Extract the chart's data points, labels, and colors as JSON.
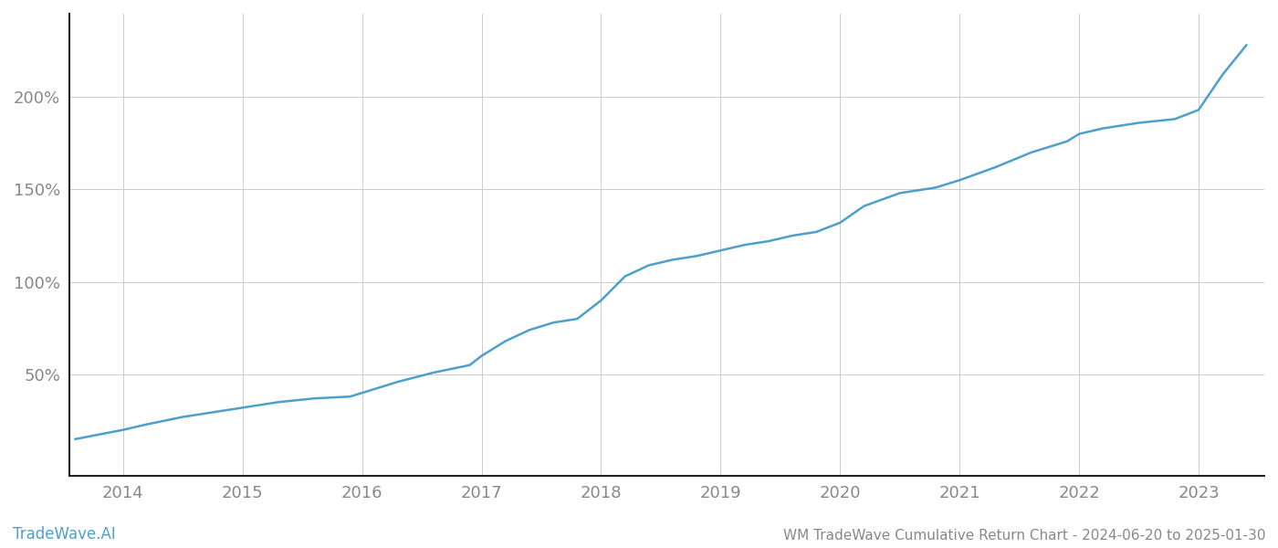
{
  "title": "WM TradeWave Cumulative Return Chart - 2024-06-20 to 2025-01-30",
  "watermark": "TradeWave.AI",
  "line_color": "#4d9fcc",
  "background_color": "#ffffff",
  "grid_color": "#cccccc",
  "years": [
    2014,
    2015,
    2016,
    2017,
    2018,
    2019,
    2020,
    2021,
    2022,
    2023
  ],
  "x_values": [
    2013.6,
    2014.0,
    2014.2,
    2014.5,
    2014.8,
    2015.0,
    2015.3,
    2015.6,
    2015.9,
    2016.0,
    2016.3,
    2016.6,
    2016.9,
    2017.0,
    2017.2,
    2017.4,
    2017.6,
    2017.8,
    2018.0,
    2018.2,
    2018.4,
    2018.6,
    2018.8,
    2019.0,
    2019.2,
    2019.4,
    2019.6,
    2019.8,
    2020.0,
    2020.2,
    2020.5,
    2020.8,
    2021.0,
    2021.3,
    2021.6,
    2021.9,
    2022.0,
    2022.2,
    2022.5,
    2022.8,
    2023.0,
    2023.2,
    2023.4
  ],
  "y_values": [
    15,
    20,
    23,
    27,
    30,
    32,
    35,
    37,
    38,
    40,
    46,
    51,
    55,
    60,
    68,
    74,
    78,
    80,
    90,
    103,
    109,
    112,
    114,
    117,
    120,
    122,
    125,
    127,
    132,
    141,
    148,
    151,
    155,
    162,
    170,
    176,
    180,
    183,
    186,
    188,
    193,
    212,
    228
  ],
  "ylim": [
    -5,
    245
  ],
  "yticks": [
    50,
    100,
    150,
    200
  ],
  "xlim": [
    2013.55,
    2023.55
  ],
  "tick_label_color": "#888888",
  "left_spine_color": "#222222",
  "bottom_spine_color": "#222222",
  "line_width": 1.8,
  "title_fontsize": 11,
  "watermark_fontsize": 12,
  "tick_fontsize": 13
}
